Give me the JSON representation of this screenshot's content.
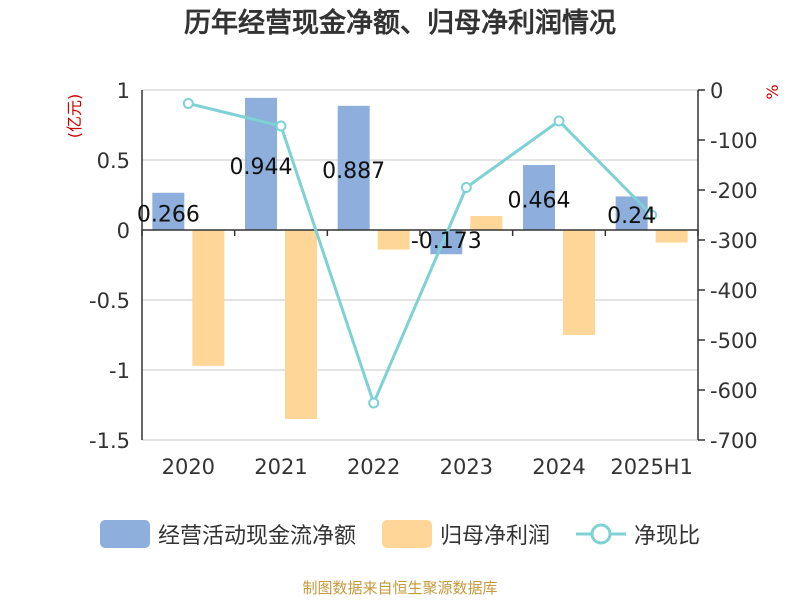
{
  "colors": {
    "cashflow": "#8eaedc",
    "netprofit": "#fed798",
    "ratio": "#7ed1d4",
    "axis": "#333333",
    "grid": "#c8c8c8",
    "unit": "#cc0000",
    "source": "#c59a3c"
  },
  "chart_data": {
    "type": "bar",
    "title": "历年经营现金净额、归母净利润情况",
    "categories": [
      "2020",
      "2021",
      "2022",
      "2023",
      "2024",
      "2025H1"
    ],
    "y_left": {
      "unit": "(亿元)",
      "ylim": [
        -1.5,
        1
      ],
      "ticks": [
        "1",
        "0.5",
        "0",
        "-0.5",
        "-1",
        "-1.5"
      ]
    },
    "y_right": {
      "unit": "%",
      "ylim": [
        -700,
        0
      ],
      "ticks": [
        "0",
        "-100",
        "-200",
        "-300",
        "-400",
        "-500",
        "-600",
        "-700"
      ]
    },
    "series": [
      {
        "name": "经营活动现金流净额",
        "axis": "left",
        "kind": "bar",
        "values": [
          0.266,
          0.944,
          0.887,
          -0.173,
          0.464,
          0.24
        ],
        "labels": [
          "0.266",
          "0.944",
          "0.887",
          "-0.173",
          "0.464",
          "0.24"
        ]
      },
      {
        "name": "归母净利润",
        "axis": "left",
        "kind": "bar",
        "values": [
          -0.97,
          -1.35,
          -0.14,
          0.1,
          -0.75,
          -0.09
        ]
      },
      {
        "name": "净现比",
        "axis": "right",
        "kind": "line",
        "values": [
          -27,
          -72,
          -626,
          -195,
          -62,
          -250
        ]
      }
    ],
    "grid": true,
    "legend": "bottom"
  },
  "source": "制图数据来自恒生聚源数据库"
}
